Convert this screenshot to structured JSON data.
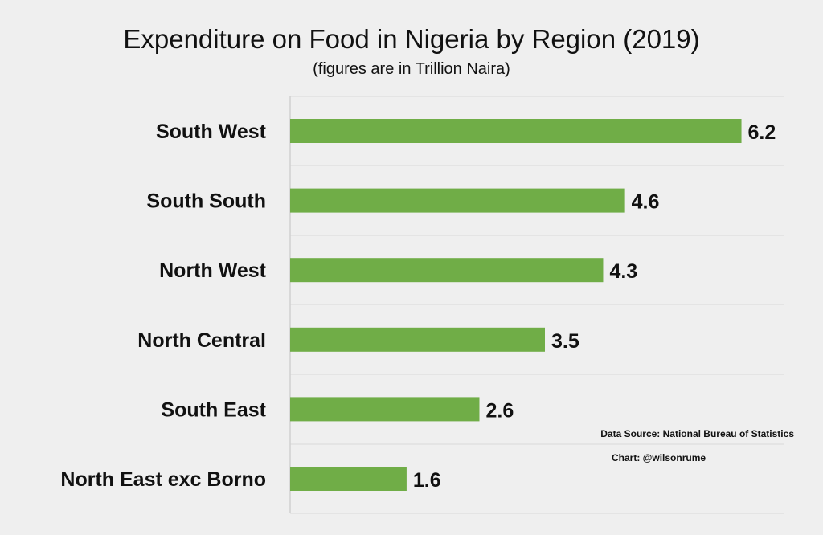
{
  "chart_data": {
    "type": "bar",
    "orientation": "horizontal",
    "title": "Expenditure on Food in Nigeria by Region (2019)",
    "subtitle": "(figures are in Trillion Naira)",
    "categories": [
      "South West",
      "South South",
      "North West",
      "North Central",
      "South East",
      "North East exc Borno"
    ],
    "values": [
      6.2,
      4.6,
      4.3,
      3.5,
      2.6,
      1.6
    ],
    "xlim": [
      0,
      7
    ],
    "grid": true,
    "legend": "none",
    "bar_color": "#70ad47",
    "gridline_color": "#d9d9d9"
  },
  "footer": {
    "source": "Data Source: National Bureau of Statistics",
    "credit": "Chart: @wilsonrume"
  }
}
